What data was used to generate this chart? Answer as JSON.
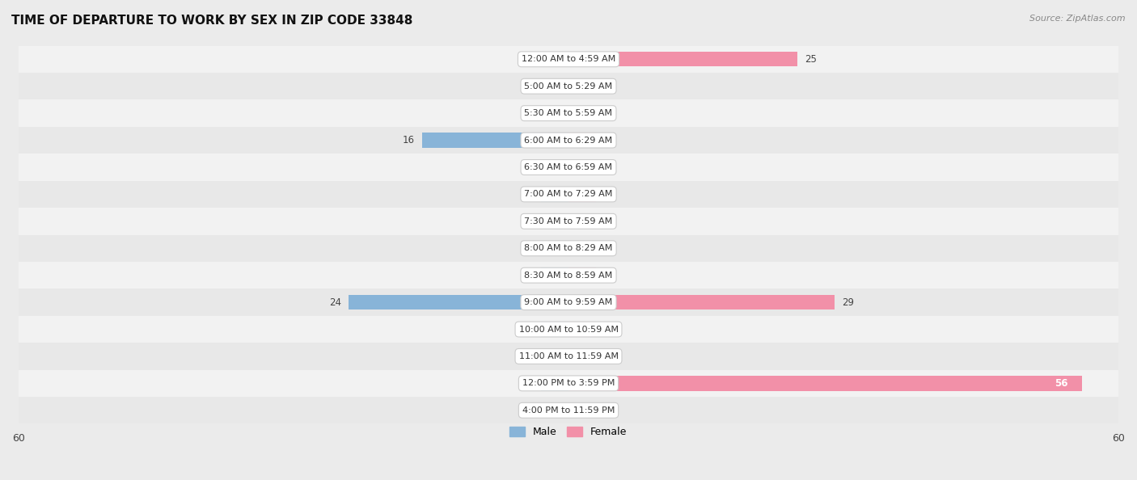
{
  "title": "TIME OF DEPARTURE TO WORK BY SEX IN ZIP CODE 33848",
  "source": "Source: ZipAtlas.com",
  "categories": [
    "12:00 AM to 4:59 AM",
    "5:00 AM to 5:29 AM",
    "5:30 AM to 5:59 AM",
    "6:00 AM to 6:29 AM",
    "6:30 AM to 6:59 AM",
    "7:00 AM to 7:29 AM",
    "7:30 AM to 7:59 AM",
    "8:00 AM to 8:29 AM",
    "8:30 AM to 8:59 AM",
    "9:00 AM to 9:59 AM",
    "10:00 AM to 10:59 AM",
    "11:00 AM to 11:59 AM",
    "12:00 PM to 3:59 PM",
    "4:00 PM to 11:59 PM"
  ],
  "male_values": [
    0,
    0,
    0,
    16,
    0,
    0,
    0,
    0,
    0,
    24,
    0,
    0,
    0,
    0
  ],
  "female_values": [
    25,
    0,
    0,
    0,
    0,
    0,
    0,
    0,
    0,
    29,
    0,
    0,
    56,
    0
  ],
  "male_color": "#88b4d8",
  "female_color": "#f290a8",
  "xlim": 60,
  "zero_stub": 3,
  "row_colors": [
    "#f2f2f2",
    "#e8e8e8"
  ],
  "bg_color": "#ebebeb",
  "label_color": "#444444",
  "title_color": "#111111",
  "source_color": "#888888",
  "legend_male": "Male",
  "legend_female": "Female"
}
